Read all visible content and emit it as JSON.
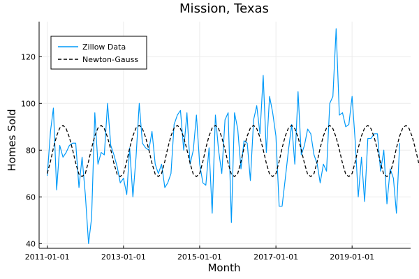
{
  "chart_data": {
    "type": "line",
    "title": "Mission, Texas",
    "xlabel": "Month",
    "ylabel": "Homes Sold",
    "x_axis": {
      "type": "date",
      "range": [
        "2010-10-15",
        "2020-07-15"
      ],
      "ticks": [
        "2011-01-01",
        "2013-01-01",
        "2015-01-01",
        "2017-01-01",
        "2019-01-01"
      ]
    },
    "y_axis": {
      "range": [
        38,
        135
      ],
      "ticks": [
        40,
        60,
        80,
        100,
        120
      ]
    },
    "grid": true,
    "legend": {
      "placement": "top-left",
      "entries": [
        "Zillow Data",
        "Newton-Gauss"
      ]
    },
    "series": [
      {
        "name": "Zillow Data",
        "color": "#009af9",
        "style": "solid",
        "start": "2011-01",
        "values": [
          69,
          88,
          98,
          63,
          82,
          77,
          79,
          82,
          83,
          83,
          64,
          77,
          61,
          40,
          51,
          96,
          74,
          79,
          78,
          100,
          82,
          78,
          73,
          66,
          68,
          61,
          81,
          60,
          77,
          100,
          83,
          81,
          80,
          88,
          74,
          70,
          74,
          64,
          66,
          70,
          91,
          95,
          97,
          80,
          96,
          74,
          80,
          95,
          74,
          66,
          65,
          81,
          53,
          95,
          80,
          70,
          93,
          96,
          49,
          96,
          89,
          72,
          84,
          83,
          67,
          93,
          99,
          87,
          112,
          79,
          103,
          96,
          86,
          56,
          56,
          68,
          80,
          91,
          74,
          105,
          78,
          82,
          89,
          87,
          78,
          74,
          66,
          74,
          71,
          100,
          103,
          132,
          95,
          96,
          90,
          91,
          103,
          83,
          60,
          77,
          58,
          85,
          85,
          87,
          87,
          71,
          80,
          57,
          72,
          68,
          53,
          83
        ]
      },
      {
        "name": "Newton-Gauss",
        "color": "#000000",
        "style": "dashed",
        "start": "2011-01",
        "values": [
          70.0,
          75.2,
          80.9,
          86.1,
          89.5,
          90.6,
          89.2,
          85.5,
          80.2,
          74.4,
          69.7,
          68.7,
          70.0,
          75.2,
          80.9,
          86.1,
          89.5,
          90.6,
          89.2,
          85.5,
          80.2,
          74.4,
          69.7,
          68.7,
          70.0,
          75.2,
          80.9,
          86.1,
          89.5,
          90.6,
          89.2,
          85.5,
          80.2,
          74.4,
          69.7,
          68.7,
          70.0,
          75.2,
          80.9,
          86.1,
          89.5,
          90.6,
          89.2,
          85.5,
          80.2,
          74.4,
          69.7,
          68.7,
          70.0,
          75.2,
          80.9,
          86.1,
          89.5,
          90.6,
          89.2,
          85.5,
          80.2,
          74.4,
          69.7,
          68.7,
          70.0,
          75.2,
          80.9,
          86.1,
          89.5,
          90.6,
          89.2,
          85.5,
          80.2,
          74.4,
          69.7,
          68.7,
          70.0,
          75.2,
          80.9,
          86.1,
          89.5,
          90.6,
          89.2,
          85.5,
          80.2,
          74.4,
          69.7,
          68.7,
          70.0,
          75.2,
          80.9,
          86.1,
          89.5,
          90.6,
          89.2,
          85.5,
          80.2,
          74.4,
          69.7,
          68.7,
          70.0,
          75.2,
          80.9,
          86.1,
          89.5,
          90.6,
          89.2,
          85.5,
          80.2,
          74.4,
          69.7,
          68.7,
          70.0,
          75.2,
          80.9,
          86.1,
          89.5,
          90.6,
          89.2,
          85.5,
          80.2,
          74.4,
          69.7,
          68.7
        ]
      }
    ]
  }
}
